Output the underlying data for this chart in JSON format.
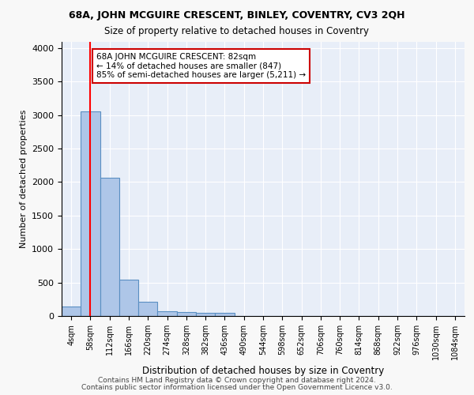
{
  "title1": "68A, JOHN MCGUIRE CRESCENT, BINLEY, COVENTRY, CV3 2QH",
  "title2": "Size of property relative to detached houses in Coventry",
  "xlabel": "Distribution of detached houses by size in Coventry",
  "ylabel": "Number of detached properties",
  "bin_labels": [
    "4sqm",
    "58sqm",
    "112sqm",
    "166sqm",
    "220sqm",
    "274sqm",
    "328sqm",
    "382sqm",
    "436sqm",
    "490sqm",
    "544sqm",
    "598sqm",
    "652sqm",
    "706sqm",
    "760sqm",
    "814sqm",
    "868sqm",
    "922sqm",
    "976sqm",
    "1030sqm",
    "1084sqm"
  ],
  "bar_heights": [
    140,
    3060,
    2060,
    540,
    210,
    75,
    55,
    45,
    45,
    0,
    0,
    0,
    0,
    0,
    0,
    0,
    0,
    0,
    0,
    0,
    0
  ],
  "bar_color": "#aec6e8",
  "bar_edge_color": "#5a8fc2",
  "red_line_x": 1,
  "annotation_text": "68A JOHN MCGUIRE CRESCENT: 82sqm\n← 14% of detached houses are smaller (847)\n85% of semi-detached houses are larger (5,211) →",
  "annotation_box_color": "#ffffff",
  "annotation_box_edge": "#cc0000",
  "ylim": [
    0,
    4100
  ],
  "yticks": [
    0,
    500,
    1000,
    1500,
    2000,
    2500,
    3000,
    3500,
    4000
  ],
  "footer1": "Contains HM Land Registry data © Crown copyright and database right 2024.",
  "footer2": "Contains public sector information licensed under the Open Government Licence v3.0.",
  "background_color": "#e8eef8",
  "grid_color": "#ffffff"
}
